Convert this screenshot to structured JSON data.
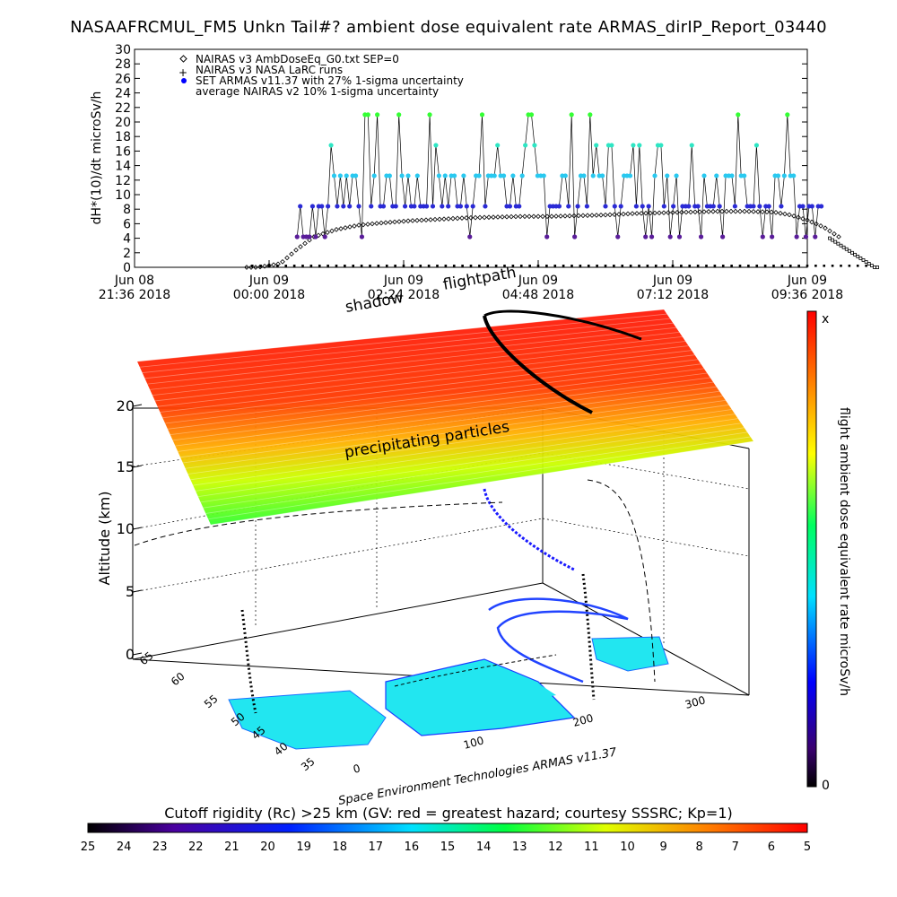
{
  "title": "NASAAFRCMUL_FM5 Unkn Tail#? ambient dose equivalent rate ARMAS_dirIP_Report_03440",
  "chart_data": [
    {
      "type": "scatter",
      "ylabel": "dH*(10)/dt microSv/h",
      "ylim": [
        0,
        30
      ],
      "yticks": [
        "0",
        "2",
        "4",
        "6",
        "8",
        "10",
        "12",
        "14",
        "16",
        "18",
        "20",
        "22",
        "24",
        "26",
        "28",
        "30"
      ],
      "xticks": [
        {
          "day": "Jun 08",
          "time": "21:36 2018"
        },
        {
          "day": "Jun 09",
          "time": "00:00 2018"
        },
        {
          "day": "Jun 09",
          "time": "02:24 2018"
        },
        {
          "day": "Jun 09",
          "time": "04:48 2018"
        },
        {
          "day": "Jun 09",
          "time": "07:12 2018"
        },
        {
          "day": "Jun 09",
          "time": "09:36 2018"
        }
      ],
      "legend": [
        {
          "symbol": "◇",
          "label": "NAIRAS v3 AmbDoseEq_G0.txt SEP=0"
        },
        {
          "symbol": "+",
          "label": "NAIRAS v3 NASA LaRC runs"
        },
        {
          "symbol": "●",
          "label": "SET ARMAS v11.37 with 27% 1-sigma uncertainty"
        },
        {
          "symbol": "",
          "label": "average NAIRAS v2 10% 1-sigma uncertainty"
        }
      ],
      "series": [
        {
          "name": "NAIRAS v3 AmbDoseEq_G0.txt SEP=0",
          "x_hours": [
            -0.2,
            0.2,
            0.5,
            0.8,
            1.2,
            1.6,
            2.0,
            2.5,
            3.0,
            3.5,
            4.0,
            4.5,
            5.0,
            5.5,
            6.0,
            6.5,
            7.0,
            7.5,
            8.0,
            8.5,
            9.0,
            9.3,
            9.6,
            9.9,
            10.2
          ],
          "y": [
            0,
            0.5,
            2.5,
            4.2,
            5.2,
            5.8,
            6.1,
            6.4,
            6.6,
            6.8,
            6.9,
            7.0,
            7.0,
            7.1,
            7.2,
            7.4,
            7.5,
            7.6,
            7.7,
            7.7,
            7.6,
            7.2,
            6.5,
            5.5,
            4.0
          ]
        },
        {
          "name": "SET ARMAS v11.37",
          "levels": [
            4.2,
            8.4,
            12.6,
            16.8,
            21.0
          ]
        }
      ]
    },
    {
      "type": "3d-trajectory",
      "zlabel": "Altitude (km)",
      "zticks": [
        "0",
        "5",
        "10",
        "15",
        "20"
      ],
      "lat_ticks": [
        "35",
        "40",
        "45",
        "50",
        "55",
        "60",
        "65"
      ],
      "lon_ticks": [
        "0",
        "100",
        "200",
        "300"
      ],
      "annotations": [
        "flightpath",
        "shadow",
        "precipitating particles"
      ],
      "colorbar_label": "flight ambient dose equivalent rate microSv/h",
      "colorbar_top": "x",
      "colorbar_bottom": "0",
      "credit": "Space Environment Technologies ARMAS v11.37"
    }
  ],
  "bottom_bar": {
    "label": "Cutoff rigidity (Rc) >25 km (GV: red = greatest hazard; courtesy SSSRC; Kp=1)",
    "ticks": [
      "25",
      "24",
      "23",
      "22",
      "21",
      "20",
      "19",
      "18",
      "17",
      "16",
      "15",
      "14",
      "13",
      "12",
      "11",
      "10",
      "9",
      "8",
      "7",
      "6",
      "5"
    ]
  }
}
